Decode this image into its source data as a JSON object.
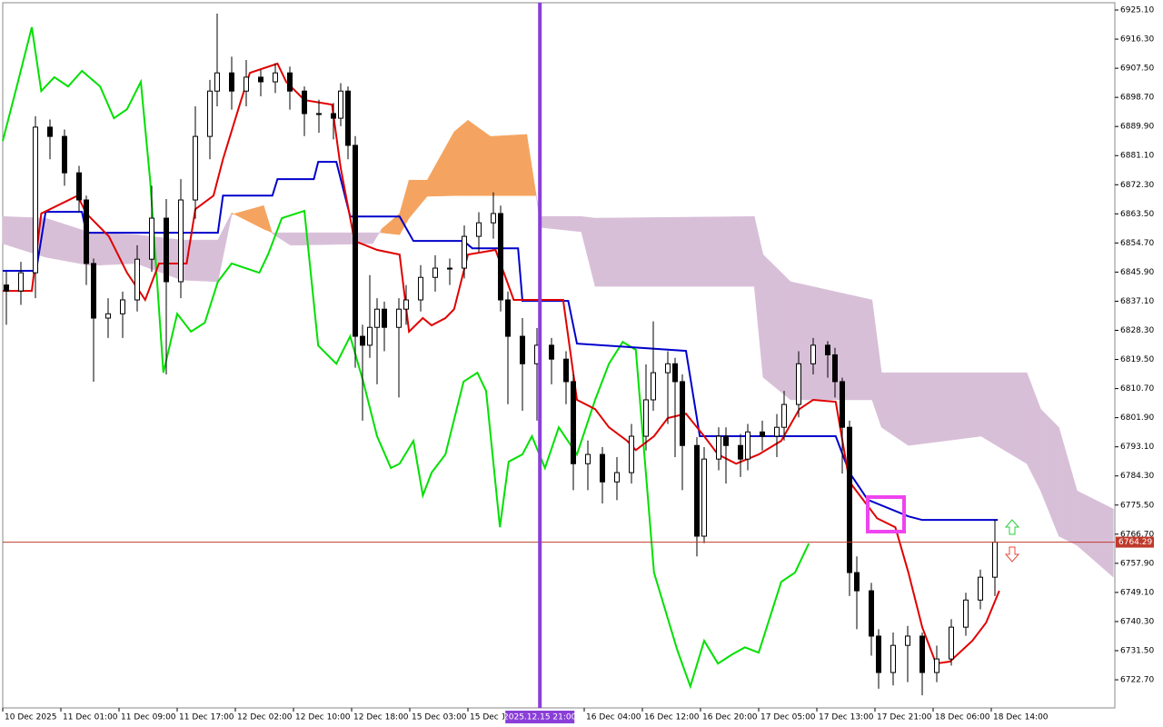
{
  "chart_data": {
    "type": "candlestick",
    "xlim": [
      -0.5,
      152.5
    ],
    "ylim": [
      6714.2,
      6927.3
    ],
    "grid": true,
    "xticks": [
      {
        "value": 0,
        "label": "10 Dec 2025"
      },
      {
        "value": 8,
        "label": "11 Dec 01:00"
      },
      {
        "value": 16,
        "label": "11 Dec 09:00"
      },
      {
        "value": 24,
        "label": "11 Dec 17:00"
      },
      {
        "value": 32,
        "label": "12 Dec 02:00"
      },
      {
        "value": 40,
        "label": "12 Dec 10:00"
      },
      {
        "value": 48,
        "label": "12 Dec 18:00"
      },
      {
        "value": 56,
        "label": "15 Dec 03:00"
      },
      {
        "value": 64,
        "label": "15 Dec 11:00"
      },
      {
        "value": 80,
        "label": "16 Dec 04:00"
      },
      {
        "value": 88,
        "label": "16 Dec 12:00"
      },
      {
        "value": 96,
        "label": "16 Dec 20:00"
      },
      {
        "value": 104,
        "label": "17 Dec 05:00"
      },
      {
        "value": 112,
        "label": "17 Dec 13:00"
      },
      {
        "value": 120,
        "label": "17 Dec 21:00"
      },
      {
        "value": 128,
        "label": "18 Dec 06:00"
      },
      {
        "value": 136,
        "label": "18 Dec 14:00"
      }
    ],
    "yticks": [
      {
        "value": 6925.1,
        "label": "6925.10"
      },
      {
        "value": 6916.3,
        "label": "6916.30"
      },
      {
        "value": 6907.5,
        "label": "6907.50"
      },
      {
        "value": 6898.7,
        "label": "6898.70"
      },
      {
        "value": 6889.9,
        "label": "6889.90"
      },
      {
        "value": 6881.1,
        "label": "6881.10"
      },
      {
        "value": 6872.3,
        "label": "6872.30"
      },
      {
        "value": 6863.5,
        "label": "6863.50"
      },
      {
        "value": 6854.7,
        "label": "6854.70"
      },
      {
        "value": 6845.9,
        "label": "6845.90"
      },
      {
        "value": 6837.1,
        "label": "6837.10"
      },
      {
        "value": 6828.3,
        "label": "6828.30"
      },
      {
        "value": 6819.5,
        "label": "6819.50"
      },
      {
        "value": 6810.7,
        "label": "6810.70"
      },
      {
        "value": 6801.9,
        "label": "6801.90"
      },
      {
        "value": 6793.1,
        "label": "6793.10"
      },
      {
        "value": 6784.3,
        "label": "6784.30"
      },
      {
        "value": 6775.5,
        "label": "6775.50"
      },
      {
        "value": 6766.7,
        "label": "6766.70"
      },
      {
        "value": 6757.9,
        "label": "6757.90"
      },
      {
        "value": 6749.1,
        "label": "6749.10"
      },
      {
        "value": 6740.3,
        "label": "6740.30"
      },
      {
        "value": 6731.5,
        "label": "6731.50"
      },
      {
        "value": 6722.7,
        "label": "6722.70"
      }
    ],
    "last_price": 6764.29,
    "last_price_color": "#c0392b",
    "crosshair": {
      "x": 73.4,
      "label": "2025.12.15 21:00",
      "color": "#8a3fd8"
    },
    "candles": {
      "up_color": "#ffffff",
      "down_color": "#000000",
      "x": [
        0,
        2,
        4,
        6,
        8,
        10,
        11,
        12,
        14,
        16,
        18,
        20,
        22,
        24,
        26,
        28,
        29,
        31,
        33,
        35,
        37,
        39,
        41,
        43,
        45,
        46,
        47,
        48,
        49,
        50,
        51,
        52,
        54,
        55,
        57,
        59,
        61,
        63,
        65,
        67,
        68,
        69,
        71,
        73,
        75,
        77,
        78,
        80,
        82,
        84,
        86,
        88,
        89,
        91,
        92,
        93,
        95,
        96,
        98,
        99,
        101,
        102,
        104,
        106,
        107,
        109,
        111,
        113,
        114,
        115,
        116,
        117,
        119,
        120,
        122,
        124,
        126,
        128,
        130,
        132,
        134,
        136
      ],
      "open": [
        6842.0,
        6840.2,
        6845.7,
        6889.7,
        6886.9,
        6875.9,
        6867.7,
        6848.5,
        6832.0,
        6833.3,
        6837.5,
        6849.8,
        6862.2,
        6843.0,
        6867.7,
        6886.9,
        6900.6,
        6906.1,
        6900.6,
        6904.8,
        6903.4,
        6906.1,
        6900.6,
        6893.8,
        6893.8,
        6892.4,
        6900.6,
        6884.2,
        6826.5,
        6823.8,
        6829.2,
        6834.7,
        6829.2,
        6834.7,
        6837.5,
        6844.3,
        6847.1,
        6847.1,
        6856.7,
        6860.8,
        6863.6,
        6837.5,
        6826.5,
        6818.2,
        6823.8,
        6819.6,
        6812.8,
        6788.0,
        6790.8,
        6782.5,
        6785.3,
        6796.3,
        6807.3,
        6815.5,
        6818.2,
        6812.8,
        6793.5,
        6766.1,
        6789.4,
        6796.3,
        6793.5,
        6789.4,
        6797.6,
        6796.3,
        6799.0,
        6805.9,
        6818.2,
        6823.8,
        6820.9,
        6812.8,
        6799.0,
        6755.1,
        6749.6,
        6735.9,
        6724.9,
        6733.1,
        6735.9,
        6724.9,
        6729.0,
        6738.6,
        6746.8,
        6753.7
      ],
      "high": [
        6846,
        6849,
        6893,
        6892,
        6889,
        6878,
        6869,
        6850,
        6838,
        6840,
        6854,
        6872,
        6868,
        6874,
        6896,
        6904,
        6924,
        6911,
        6910,
        6907,
        6909,
        6908,
        6902,
        6898,
        6897,
        6903,
        6902,
        6887,
        6830,
        6845,
        6838,
        6837,
        6838,
        6842,
        6848,
        6851,
        6850,
        6860,
        6864,
        6870,
        6866,
        6840,
        6832,
        6829,
        6826,
        6822,
        6815,
        6795,
        6793,
        6790,
        6800,
        6818,
        6831,
        6822,
        6820,
        6815,
        6796,
        6793,
        6799,
        6799,
        6797,
        6800,
        6801,
        6803,
        6810,
        6822,
        6826,
        6825,
        6823,
        6814,
        6801,
        6760,
        6752,
        6738,
        6737,
        6739,
        6737,
        6733,
        6741,
        6749,
        6756,
        6771
      ],
      "low": [
        6830,
        6836,
        6838,
        6880,
        6872,
        6864,
        6842,
        6812.8,
        6826,
        6826,
        6834,
        6846,
        6815,
        6838,
        6862,
        6880,
        6896,
        6895,
        6896,
        6899,
        6900,
        6895,
        6887,
        6888,
        6886,
        6890,
        6880,
        6817,
        6801,
        6820,
        6812,
        6822,
        6808,
        6830,
        6834,
        6840,
        6842,
        6844,
        6852,
        6856,
        6834,
        6806,
        6804,
        6801,
        6812,
        6806,
        6780,
        6780,
        6776,
        6777,
        6782,
        6792,
        6804,
        6800,
        6790,
        6780,
        6760,
        6764,
        6786,
        6782,
        6784,
        6786,
        6792,
        6790,
        6795,
        6802,
        6815,
        6814,
        6808,
        6785,
        6748,
        6738,
        6730,
        6720,
        6721,
        6722,
        6718,
        6722,
        6727,
        6736,
        6744,
        6748
      ],
      "close": [
        6840.2,
        6845.7,
        6889.7,
        6886.9,
        6875.9,
        6867.7,
        6848.5,
        6832.0,
        6833.3,
        6837.5,
        6849.8,
        6862.2,
        6843.0,
        6867.7,
        6886.9,
        6900.6,
        6906.1,
        6900.6,
        6904.8,
        6903.4,
        6906.1,
        6900.6,
        6893.8,
        6893.8,
        6892.4,
        6900.6,
        6884.2,
        6826.5,
        6823.8,
        6829.2,
        6834.7,
        6829.2,
        6834.7,
        6837.5,
        6844.3,
        6847.1,
        6847.1,
        6856.7,
        6860.8,
        6863.6,
        6837.5,
        6826.5,
        6818.2,
        6823.8,
        6819.6,
        6812.8,
        6788.0,
        6790.8,
        6782.5,
        6785.3,
        6796.3,
        6807.3,
        6815.5,
        6818.2,
        6812.8,
        6793.5,
        6766.1,
        6789.4,
        6796.3,
        6793.5,
        6789.4,
        6797.6,
        6796.3,
        6799.0,
        6805.9,
        6818.2,
        6823.8,
        6820.9,
        6812.8,
        6799.0,
        6755.1,
        6749.6,
        6735.9,
        6724.9,
        6733.1,
        6735.9,
        6724.9,
        6729.0,
        6738.6,
        6746.8,
        6753.7,
        6764.29
      ]
    },
    "cloud": {
      "above_color": "#f4a460",
      "below_color": "#d8bfd8",
      "x": [
        -0.5,
        5.4,
        11.6,
        17.9,
        24.1,
        29.1,
        31,
        35.4,
        36.6,
        39.1,
        50.4,
        51.6,
        54.1,
        55.4,
        57.9,
        61.6,
        63.5,
        66.6,
        71.6,
        72.9,
        73.5,
        79.1,
        81,
        102.9,
        104.1,
        107.9,
        119.1,
        120.4,
        124.1,
        134.1,
        140.4,
        142.3,
        144.8,
        147.3,
        152.3
      ],
      "span_a": [
        6854.5,
        6850.4,
        6847.9,
        6848.5,
        6843.5,
        6843.0,
        6863.3,
        6866.0,
        6857.5,
        6854.0,
        6854.5,
        6858.9,
        6863.6,
        6873.7,
        6873.7,
        6888.3,
        6891.8,
        6886.9,
        6887.5,
        6869.0,
        6859.4,
        6858.1,
        6841.6,
        6841.6,
        6814.1,
        6807.3,
        6807.3,
        6799.0,
        6793.5,
        6796.3,
        6788.0,
        6779.8,
        6766.1,
        6763.3,
        6753.7
      ],
      "span_b": [
        6862.7,
        6862.2,
        6857.8,
        6857.2,
        6855.6,
        6855.6,
        6863.8,
        6858.9,
        6857.8,
        6857.8,
        6857.8,
        6857.8,
        6857.2,
        6862.2,
        6868.8,
        6869.0,
        6869.0,
        6869.0,
        6869.0,
        6869.0,
        6862.7,
        6862.7,
        6862.2,
        6862.7,
        6851.2,
        6843.0,
        6837.5,
        6815.5,
        6815.5,
        6815.5,
        6815.5,
        6804.5,
        6799.0,
        6779.8,
        6774.3
      ]
    },
    "series": [
      {
        "color": "#00e000",
        "x": [
          -0.5,
          1.6,
          3.5,
          4.8,
          6.6,
          8.5,
          10.4,
          12.9,
          14.8,
          16.6,
          18.5,
          19.8,
          21.6,
          23.5,
          25.4,
          27.3,
          29.1,
          31,
          32.9,
          34.8,
          36,
          37.9,
          41,
          42.9,
          45.4,
          47.3,
          49.1,
          51,
          52.9,
          54.1,
          56,
          57.3,
          58.5,
          60.4,
          62.9,
          64.8,
          66,
          67.9,
          69.1,
          71,
          72.3,
          74.1,
          76,
          78.5,
          81,
          82.9,
          84.8,
          86.6,
          89.1,
          92.3,
          94.1,
          96,
          97.9,
          99.8,
          101.6,
          103.5,
          106.6,
          108.5,
          110.4
        ],
        "values": [
          6885.5,
          6903.4,
          6919.9,
          6900.6,
          6904.8,
          6902.0,
          6906.7,
          6902.0,
          6892.4,
          6895.1,
          6903.4,
          6873.2,
          6815.5,
          6833.3,
          6827.9,
          6830.6,
          6843.0,
          6848.5,
          6847.1,
          6845.7,
          6851.2,
          6862.2,
          6864.4,
          6823.7,
          6818.2,
          6826.5,
          6812.8,
          6796.3,
          6786.7,
          6788.0,
          6794.9,
          6778.4,
          6785.3,
          6790.8,
          6812.8,
          6815.5,
          6810.0,
          6768.8,
          6788.6,
          6790.8,
          6796.3,
          6786.7,
          6799.0,
          6790.8,
          6807.3,
          6818.2,
          6824.8,
          6822.4,
          6755.1,
          6731.7,
          6720.7,
          6734.5,
          6727.6,
          6730.3,
          6732.5,
          6730.9,
          6752.3,
          6755.1,
          6763.9
        ]
      },
      {
        "color": "#0000cc",
        "x": [
          -0.5,
          4.1,
          5.4,
          10.4,
          11,
          29.1,
          29.8,
          36.6,
          37.3,
          42.3,
          42.9,
          45.4,
          47.3,
          54.1,
          56,
          62.9,
          64.1,
          70.4,
          71,
          77.3,
          78.5,
          93.5,
          95.4,
          114.1,
          116,
          118.5,
          124.1,
          126,
          136.4
        ],
        "values": [
          6846.3,
          6846.3,
          6864.1,
          6864.1,
          6857.8,
          6857.8,
          6869.0,
          6869.0,
          6874.0,
          6874.0,
          6879.2,
          6879.2,
          6862.7,
          6862.7,
          6855.3,
          6855.3,
          6853.1,
          6853.1,
          6837.2,
          6837.2,
          6824.3,
          6822.1,
          6796.3,
          6796.3,
          6785.3,
          6777.1,
          6772.1,
          6771.0,
          6771.0
        ]
      },
      {
        "color": "#e00000",
        "x": [
          -0.5,
          3.5,
          4.8,
          9.8,
          11,
          14.1,
          16.6,
          19.1,
          21,
          24.8,
          26,
          28.5,
          29.8,
          32.3,
          33.5,
          37.3,
          38.5,
          41,
          44.8,
          46,
          47.9,
          51,
          54.1,
          55.4,
          57.3,
          58.5,
          60.4,
          61.6,
          63.5,
          67.3,
          69.8,
          76.6,
          78.5,
          81,
          82.9,
          85.4,
          86.6,
          89.1,
          91,
          93.5,
          96,
          97.9,
          100.4,
          103.5,
          106.6,
          109.1,
          111,
          114.1,
          116,
          119.8,
          122.3,
          124.1,
          126,
          127.9,
          129.8,
          132.9,
          134.8,
          136.6
        ],
        "values": [
          6840.2,
          6840.2,
          6863.6,
          6869.0,
          6863.6,
          6856.7,
          6845.7,
          6837.5,
          6848.5,
          6848.5,
          6864.9,
          6869.0,
          6880.0,
          6897.9,
          6906.1,
          6908.9,
          6903.4,
          6897.9,
          6896.5,
          6877.3,
          6855.3,
          6852.6,
          6851.2,
          6827.9,
          6832.0,
          6829.8,
          6832.0,
          6834.7,
          6851.2,
          6852.6,
          6837.5,
          6837.5,
          6807.3,
          6804.5,
          6799.0,
          6794.9,
          6792.1,
          6796.3,
          6801.8,
          6803.1,
          6796.3,
          6790.8,
          6788.0,
          6790.8,
          6794.9,
          6804.5,
          6807.3,
          6806.7,
          6782.5,
          6771.5,
          6768.8,
          6755.1,
          6738.6,
          6727.6,
          6728.2,
          6734.5,
          6740.0,
          6749.6
        ]
      }
    ]
  }
}
